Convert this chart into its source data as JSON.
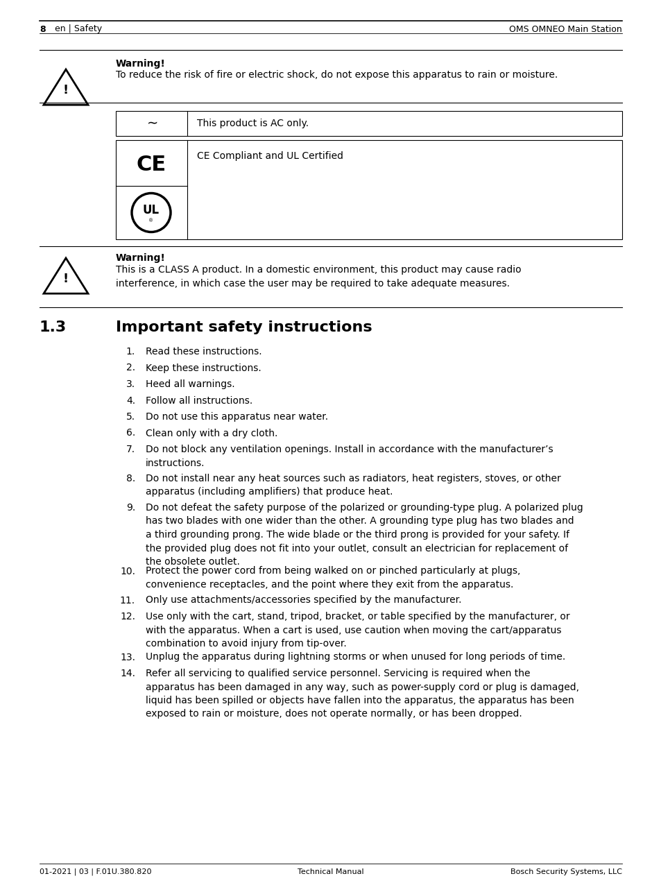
{
  "page_num": "8",
  "header_left": "en | Safety",
  "header_right": "OMS OMNEO Main Station",
  "footer_left": "01-2021 | 03 | F.01U.380.820",
  "footer_center": "Technical Manual",
  "footer_right": "Bosch Security Systems, LLC",
  "warning1_title": "Warning!",
  "warning1_text": "To reduce the risk of fire or electric shock, do not expose this apparatus to rain or moisture.",
  "ac_only_text": "This product is AC only.",
  "ce_ul_text": "CE Compliant and UL Certified",
  "warning2_title": "Warning!",
  "warning2_text": "This is a CLASS A product. In a domestic environment, this product may cause radio\ninterference, in which case the user may be required to take adequate measures.",
  "section_num": "1.3",
  "section_title": "Important safety instructions",
  "instructions": [
    "Read these instructions.",
    "Keep these instructions.",
    "Heed all warnings.",
    "Follow all instructions.",
    "Do not use this apparatus near water.",
    "Clean only with a dry cloth.",
    "Do not block any ventilation openings. Install in accordance with the manufacturer’s\ninstructions.",
    "Do not install near any heat sources such as radiators, heat registers, stoves, or other\napparatus (including amplifiers) that produce heat.",
    "Do not defeat the safety purpose of the polarized or grounding-type plug. A polarized plug\nhas two blades with one wider than the other. A grounding type plug has two blades and\na third grounding prong. The wide blade or the third prong is provided for your safety. If\nthe provided plug does not fit into your outlet, consult an electrician for replacement of\nthe obsolete outlet.",
    "Protect the power cord from being walked on or pinched particularly at plugs,\nconvenience receptacles, and the point where they exit from the apparatus.",
    "Only use attachments/accessories specified by the manufacturer.",
    "Use only with the cart, stand, tripod, bracket, or table specified by the manufacturer, or\nwith the apparatus. When a cart is used, use caution when moving the cart/apparatus\ncombination to avoid injury from tip-over.",
    "Unplug the apparatus during lightning storms or when unused for long periods of time.",
    "Refer all servicing to qualified service personnel. Servicing is required when the\napparatus has been damaged in any way, such as power-supply cord or plug is damaged,\nliquid has been spilled or objects have fallen into the apparatus, the apparatus has been\nexposed to rain or moisture, does not operate normally, or has been dropped."
  ],
  "bg_color": "#ffffff",
  "text_color": "#000000",
  "figsize": [
    9.54,
    12.73
  ],
  "dpi": 100
}
